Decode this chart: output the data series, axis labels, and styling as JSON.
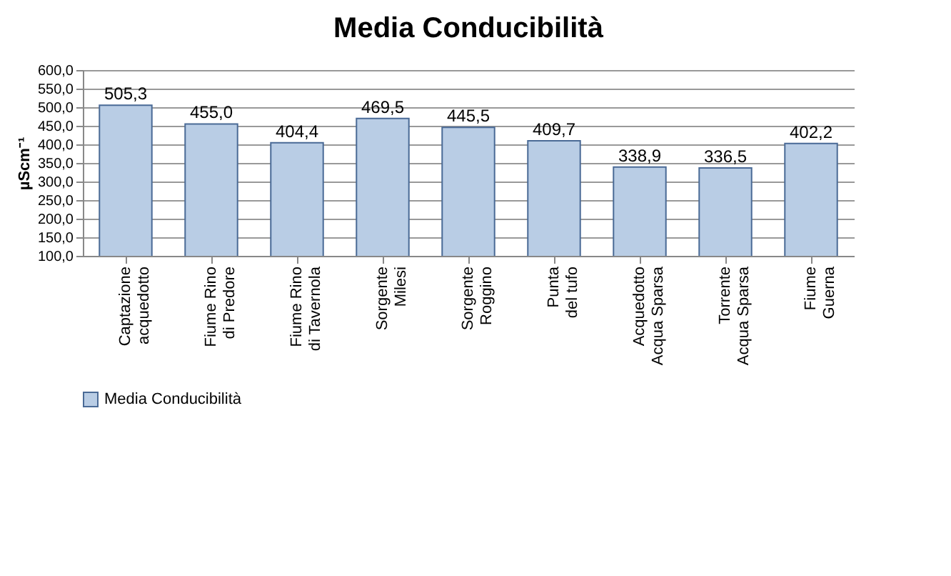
{
  "chart_data": {
    "type": "bar",
    "title": "Media Conducibilità",
    "ylabel": "µScm⁻¹",
    "categories": [
      "Captazione acquedotto",
      "Fiume Rino di Predore",
      "Fiume Rino di Tavernola",
      "Sorgente Milesi",
      "Sorgente Roggino",
      "Punta del tufo",
      "Acquedotto Acqua Sparsa",
      "Torrente Acqua Sparsa",
      "Fiume Guerna"
    ],
    "series": [
      {
        "name": "Media Conducibilità",
        "color": "#b9cde5",
        "values": [
          505.3,
          455.0,
          404.4,
          469.5,
          445.5,
          409.7,
          338.9,
          336.5,
          402.2
        ],
        "value_labels": [
          "505,3",
          "455,0",
          "404,4",
          "469,5",
          "445,5",
          "409,7",
          "338,9",
          "336,5",
          "402,2"
        ]
      }
    ],
    "ylim": [
      100,
      600
    ],
    "yticks": [
      {
        "value": 100,
        "label": "100,0"
      },
      {
        "value": 150,
        "label": "150,0"
      },
      {
        "value": 200,
        "label": "200,0"
      },
      {
        "value": 250,
        "label": "250,0"
      },
      {
        "value": 300,
        "label": "300,0"
      },
      {
        "value": 350,
        "label": "350,0"
      },
      {
        "value": 400,
        "label": "400,0"
      },
      {
        "value": 450,
        "label": "450,0"
      },
      {
        "value": 500,
        "label": "500,0"
      },
      {
        "value": 550,
        "label": "550,0"
      },
      {
        "value": 600,
        "label": "600,0"
      }
    ],
    "grid": "y",
    "legend": "bottom"
  }
}
